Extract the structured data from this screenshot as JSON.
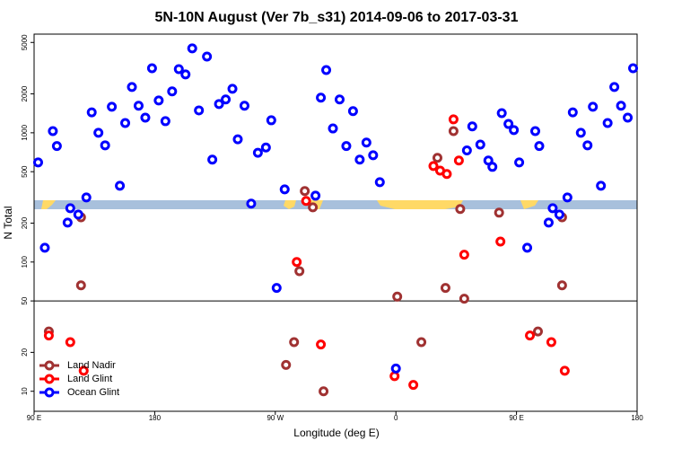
{
  "chart_data": {
    "type": "scatter",
    "title": "5N-10N August (Ver 7b_s31)   2014-09-06 to 2017-03-31",
    "xlabel": "Longitude (deg E)",
    "ylabel": "N Total",
    "ylog": true,
    "legend": "bottom-left",
    "hline": 50,
    "xlim": [
      90,
      540
    ],
    "ylim": [
      7,
      5800
    ],
    "xticks": [
      {
        "value": 90,
        "label": "90 E"
      },
      180,
      {
        "value": 270,
        "label": "90 W"
      },
      {
        "value": 360,
        "label": "0"
      },
      {
        "value": 450,
        "label": "90 E"
      },
      {
        "value": 540,
        "label": "180"
      }
    ],
    "yticks": [
      10,
      20,
      50,
      100,
      200,
      500,
      1000,
      2000,
      5000
    ],
    "series": [
      {
        "name": "Land Nadir",
        "color": "#a03232",
        "x": [
          101,
          125,
          125,
          278,
          284,
          288,
          292,
          298,
          306,
          361,
          379,
          391,
          397,
          403,
          408,
          411,
          437,
          466,
          484,
          484
        ],
        "values": [
          29,
          222,
          66,
          16,
          24,
          85,
          354,
          265,
          10,
          54,
          24,
          640,
          63,
          1030,
          257,
          52,
          241,
          29,
          222,
          66
        ]
      },
      {
        "name": "Land Glint",
        "color": "#ff0000",
        "x": [
          101,
          117,
          127,
          286,
          293,
          304,
          359,
          373,
          388,
          393,
          398,
          403,
          407,
          411,
          438,
          460,
          476,
          486
        ],
        "values": [
          27,
          24,
          14.4,
          100,
          297,
          23,
          13.1,
          11.2,
          553,
          510,
          480,
          1270,
          610,
          114,
          144,
          27,
          24,
          14.4
        ]
      },
      {
        "name": "Ocean Glint",
        "color": "#0000ff",
        "x": [
          93,
          98,
          104,
          107,
          115,
          117,
          123,
          129,
          133,
          138,
          143,
          148,
          154,
          158,
          163,
          168,
          173,
          178,
          183,
          188,
          193,
          198,
          203,
          208,
          213,
          219,
          223,
          228,
          233,
          238,
          242,
          247,
          252,
          257,
          263,
          267,
          271,
          277,
          300,
          304,
          308,
          313,
          318,
          323,
          328,
          333,
          338,
          343,
          348,
          360,
          413,
          417,
          423,
          429,
          432,
          439,
          444,
          448,
          452,
          458,
          464,
          467,
          474,
          477,
          482,
          488,
          492,
          498,
          503,
          507,
          513,
          518,
          523,
          528,
          533,
          537
        ],
        "values": [
          590,
          129,
          1030,
          790,
          202,
          261,
          233,
          316,
          1440,
          1000,
          800,
          1590,
          389,
          1190,
          2260,
          1620,
          1310,
          3160,
          1780,
          1230,
          2090,
          3110,
          2830,
          4500,
          1490,
          3890,
          620,
          1670,
          1810,
          2190,
          890,
          1620,
          283,
          700,
          770,
          1250,
          63,
          365,
          326,
          1870,
          3060,
          1080,
          1810,
          790,
          1470,
          620,
          840,
          670,
          415,
          15,
          730,
          1120,
          810,
          610,
          545,
          1420,
          1170,
          1050,
          590,
          129,
          1030,
          790,
          202,
          261,
          233,
          316,
          1440,
          1000,
          800,
          1590,
          389,
          1190,
          2260,
          1620,
          1310,
          3160
        ]
      }
    ]
  }
}
